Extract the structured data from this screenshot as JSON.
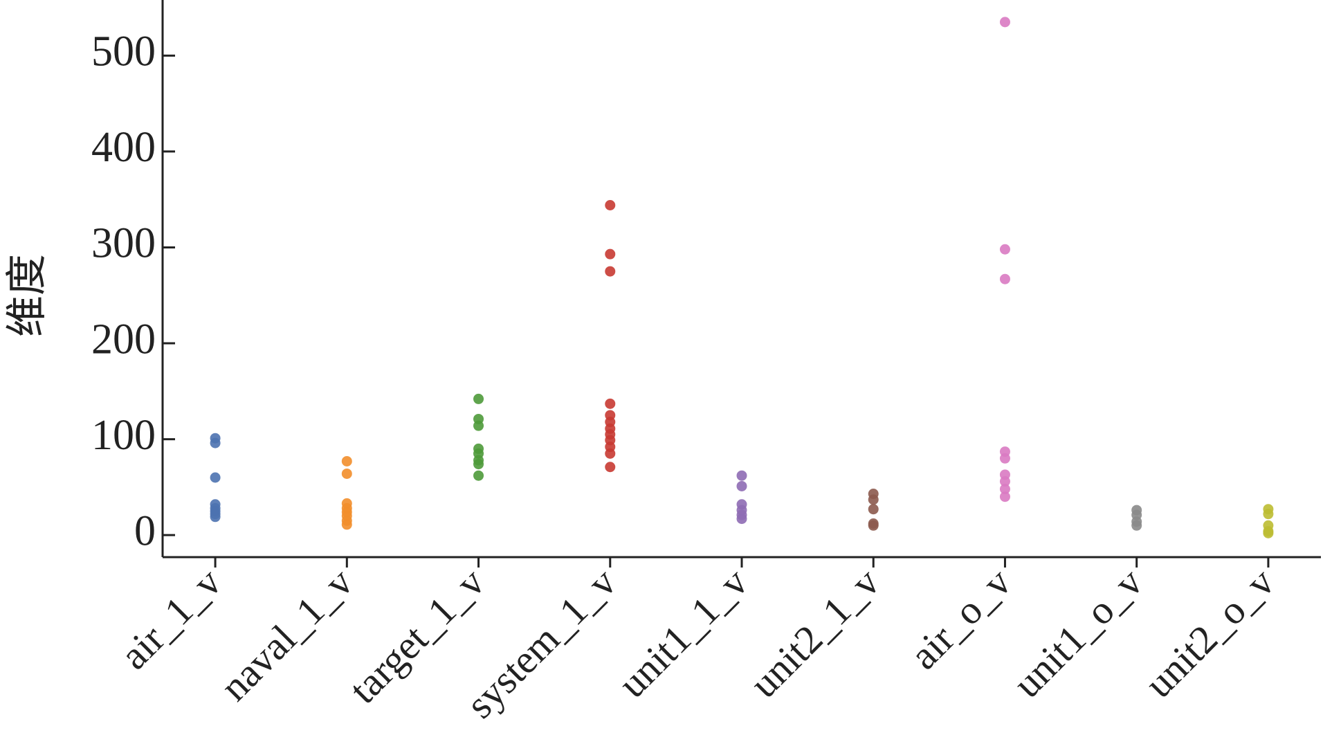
{
  "chart_data": {
    "type": "strip",
    "y_label": "维度",
    "categories": [
      "air_1_v",
      "naval_1_v",
      "target_1_v",
      "system_1_v",
      "unit1_1_v",
      "unit2_1_v",
      "air_o_v",
      "unit1_o_v",
      "unit2_o_v"
    ],
    "colors": [
      "#4c72b0",
      "#f28e2b",
      "#4e9a3a",
      "#c83a32",
      "#8e6bb4",
      "#8c5a4e",
      "#d97ac2",
      "#8a8a8a",
      "#bcbd32"
    ],
    "groups": [
      [
        101,
        96,
        60,
        32,
        28,
        25,
        22,
        19
      ],
      [
        77,
        64,
        33,
        28,
        24,
        20,
        15,
        11
      ],
      [
        142,
        121,
        114,
        90,
        85,
        78,
        74,
        62
      ],
      [
        344,
        293,
        275,
        137,
        125,
        118,
        111,
        105,
        99,
        92,
        85,
        71
      ],
      [
        62,
        51,
        32,
        26,
        21,
        17
      ],
      [
        43,
        37,
        27,
        12,
        10
      ],
      [
        535,
        298,
        267,
        87,
        80,
        63,
        56,
        48,
        40
      ],
      [
        26,
        21,
        14,
        10
      ],
      [
        27,
        22,
        10,
        4,
        2
      ]
    ],
    "ylim": [
      -23,
      558
    ],
    "yticks": [
      0,
      100,
      200,
      300,
      400,
      500
    ]
  }
}
